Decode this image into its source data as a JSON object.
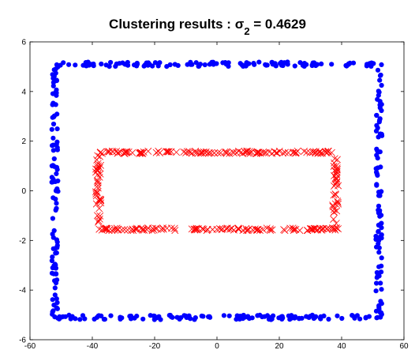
{
  "chart_data": {
    "type": "scatter",
    "title": "Clustering results : σ",
    "title_subscript": "2",
    "title_suffix": " = 0.4629",
    "xlabel": "",
    "ylabel": "",
    "xlim": [
      -60,
      60
    ],
    "ylim": [
      -6,
      6
    ],
    "xticks": [
      -60,
      -40,
      -20,
      0,
      20,
      40,
      60
    ],
    "yticks": [
      -6,
      -4,
      -2,
      0,
      2,
      4,
      6
    ],
    "grid": false,
    "series": [
      {
        "marker": "filled-circle",
        "color": "#0000ff",
        "shape": "rectangle-outline",
        "x_range": [
          -52,
          52
        ],
        "y_range": [
          -5.1,
          5.1
        ],
        "count": 440
      },
      {
        "marker": "x-cross",
        "color": "#ff0000",
        "shape": "rectangle-outline",
        "x_range": [
          -38,
          38
        ],
        "y_range": [
          -1.55,
          1.55
        ],
        "count": 320
      }
    ]
  }
}
